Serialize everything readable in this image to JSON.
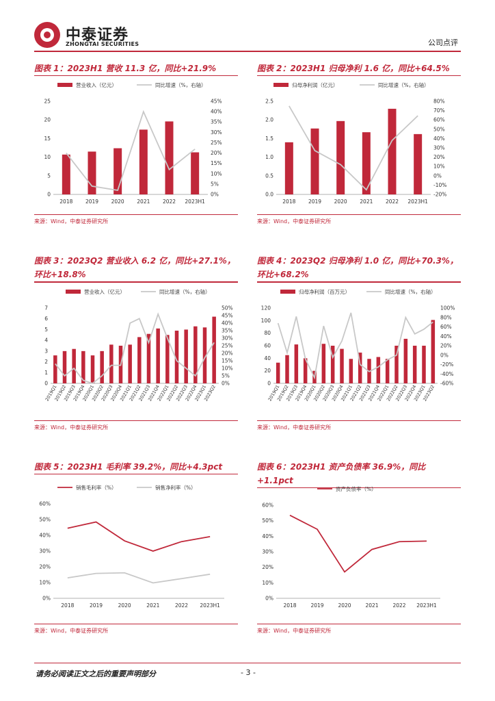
{
  "header": {
    "logo_cn": "中泰证券",
    "logo_en": "ZHONGTAI SECURITIES",
    "doc_type": "公司点评"
  },
  "figures": [
    {
      "title": "图表 1：2023H1 营收 11.3 亿，同比+21.9%",
      "source": "来源：Wind，中泰证券研究所"
    },
    {
      "title": "图表 2：2023H1 归母净利 1.6 亿，同比+64.5%",
      "source": "来源：Wind，中泰证券研究所"
    },
    {
      "title": "图表 3：2023Q2 营业收入 6.2 亿，同比+27.1%，环比+18.8%",
      "source": "来源：Wind，中泰证券研究所"
    },
    {
      "title": "图表 4：2023Q2 归母净利 1.0 亿，同比+70.3%，环比+68.2%",
      "source": "来源：Wind，中泰证券研究所"
    },
    {
      "title": "图表 5：2023H1 毛利率 39.2%，同比+4.3pct",
      "source": "来源：Wind，中泰证券研究所"
    },
    {
      "title": "图表 6：2023H1 资产负债率 36.9%，同比+1.1pct",
      "source": "来源：Wind，中泰证券研究所"
    }
  ],
  "footer": {
    "disclaimer": "请务必阅读正文之后的重要声明部分",
    "page": "- 3 -"
  },
  "colors": {
    "bar": "#c0283a",
    "line_gray": "#c8c8c8",
    "accent": "#c0283a"
  },
  "chart_data": [
    {
      "type": "bar",
      "categories": [
        "2018",
        "2019",
        "2020",
        "2021",
        "2022",
        "2023H1"
      ],
      "series": [
        {
          "name": "营业收入（亿元）",
          "kind": "bar",
          "axis": "left",
          "values": [
            10.7,
            11.5,
            12.4,
            17.4,
            19.6,
            11.3
          ]
        },
        {
          "name": "同比增速（%，右轴）",
          "kind": "line",
          "axis": "right",
          "values": [
            20,
            4,
            2,
            40,
            12,
            21.9
          ]
        }
      ],
      "ylim": [
        0,
        25
      ],
      "yticks": [
        "0",
        "5",
        "10",
        "15",
        "20",
        "25"
      ],
      "y2lim": [
        0,
        45
      ],
      "y2ticks": [
        "0%",
        "5%",
        "10%",
        "15%",
        "20%",
        "25%",
        "30%",
        "35%",
        "40%",
        "45%"
      ],
      "legend": "top"
    },
    {
      "type": "bar",
      "categories": [
        "2018",
        "2019",
        "2020",
        "2021",
        "2022",
        "2023H1"
      ],
      "series": [
        {
          "name": "归母净利润（亿元）",
          "kind": "bar",
          "axis": "left",
          "values": [
            1.4,
            1.77,
            1.97,
            1.67,
            2.3,
            1.62
          ]
        },
        {
          "name": "同比增速（%，右轴）",
          "kind": "line",
          "axis": "right",
          "values": [
            75,
            27,
            12,
            -15,
            38,
            64.5
          ]
        }
      ],
      "ylim": [
        0,
        2.5
      ],
      "yticks": [
        "0.0",
        "0.5",
        "1.0",
        "1.5",
        "2.0",
        "2.5"
      ],
      "y2lim": [
        -20,
        80
      ],
      "y2ticks": [
        "-20%",
        "-10%",
        "0%",
        "10%",
        "20%",
        "30%",
        "40%",
        "50%",
        "60%",
        "70%",
        "80%"
      ],
      "legend": "top"
    },
    {
      "type": "bar",
      "categories": [
        "2019Q1",
        "2019Q2",
        "2019Q3",
        "2019Q4",
        "2020Q1",
        "2020Q2",
        "2020Q3",
        "2020Q4",
        "2021Q1",
        "2021Q2",
        "2021Q3",
        "2021Q4",
        "2022Q1",
        "2022Q2",
        "2022Q3",
        "2022Q4",
        "2023Q1",
        "2023Q2"
      ],
      "series": [
        {
          "name": "营业收入（亿元）",
          "kind": "bar",
          "axis": "left",
          "values": [
            2.6,
            3.0,
            3.2,
            3.0,
            2.6,
            3.0,
            3.6,
            3.5,
            3.6,
            4.3,
            4.6,
            5.1,
            4.5,
            4.9,
            5.0,
            5.3,
            5.2,
            6.2
          ]
        },
        {
          "name": "同比增速（%，右轴）",
          "kind": "line",
          "axis": "right",
          "values": [
            13,
            5,
            10,
            2,
            0,
            5,
            12,
            12,
            40,
            43,
            27,
            46,
            30,
            15,
            10,
            5,
            17,
            27.1
          ]
        }
      ],
      "ylim": [
        0,
        7
      ],
      "yticks": [
        "0",
        "1",
        "2",
        "3",
        "4",
        "5",
        "6",
        "7"
      ],
      "y2lim": [
        0,
        50
      ],
      "y2ticks": [
        "0%",
        "5%",
        "10%",
        "15%",
        "20%",
        "25%",
        "30%",
        "35%",
        "40%",
        "45%",
        "50%"
      ],
      "legend": "top"
    },
    {
      "type": "bar",
      "categories": [
        "2019Q1",
        "2019Q2",
        "2019Q3",
        "2019Q4",
        "2020Q1",
        "2020Q2",
        "2020Q3",
        "2020Q4",
        "2021Q1",
        "2021Q2",
        "2021Q3",
        "2021Q4",
        "2022Q1",
        "2022Q2",
        "2022Q3",
        "2022Q4",
        "2023Q1",
        "2023Q2"
      ],
      "series": [
        {
          "name": "归母净利润（百万元）",
          "kind": "bar",
          "axis": "left",
          "values": [
            33,
            45,
            62,
            40,
            20,
            63,
            60,
            55,
            39,
            49,
            39,
            42,
            39,
            60,
            71,
            60,
            60,
            101
          ]
        },
        {
          "name": "同比增速（%，右轴）",
          "kind": "line",
          "axis": "right",
          "values": [
            68,
            5,
            82,
            -8,
            -48,
            62,
            -5,
            30,
            90,
            -20,
            -35,
            -25,
            -10,
            0,
            80,
            45,
            55,
            70.3
          ]
        }
      ],
      "ylim": [
        0,
        120
      ],
      "yticks": [
        "0",
        "20",
        "40",
        "60",
        "80",
        "100",
        "120"
      ],
      "y2lim": [
        -60,
        100
      ],
      "y2ticks": [
        "-60%",
        "-40%",
        "-20%",
        "0%",
        "20%",
        "40%",
        "60%",
        "80%",
        "100%"
      ],
      "legend": "top"
    },
    {
      "type": "line",
      "categories": [
        "2018",
        "2019",
        "2020",
        "2021",
        "2022",
        "2023H1"
      ],
      "series": [
        {
          "name": "销售毛利率（%）",
          "values": [
            44.5,
            48.5,
            36.5,
            30,
            36,
            39.2
          ]
        },
        {
          "name": "销售净利率（%）",
          "values": [
            13,
            15.8,
            16.2,
            9.8,
            12.5,
            15.3
          ]
        }
      ],
      "ylim": [
        0,
        60
      ],
      "yticks": [
        "0%",
        "10%",
        "20%",
        "30%",
        "40%",
        "50%",
        "60%"
      ],
      "legend": "top"
    },
    {
      "type": "line",
      "categories": [
        "2018",
        "2019",
        "2020",
        "2021",
        "2022",
        "2023H1"
      ],
      "series": [
        {
          "name": "资产负债率（%）",
          "values": [
            53.5,
            44.5,
            17,
            31.5,
            36.5,
            36.9
          ]
        }
      ],
      "ylim": [
        0,
        60
      ],
      "yticks": [
        "0%",
        "10%",
        "20%",
        "30%",
        "40%",
        "50%",
        "60%"
      ],
      "legend": "top"
    }
  ]
}
